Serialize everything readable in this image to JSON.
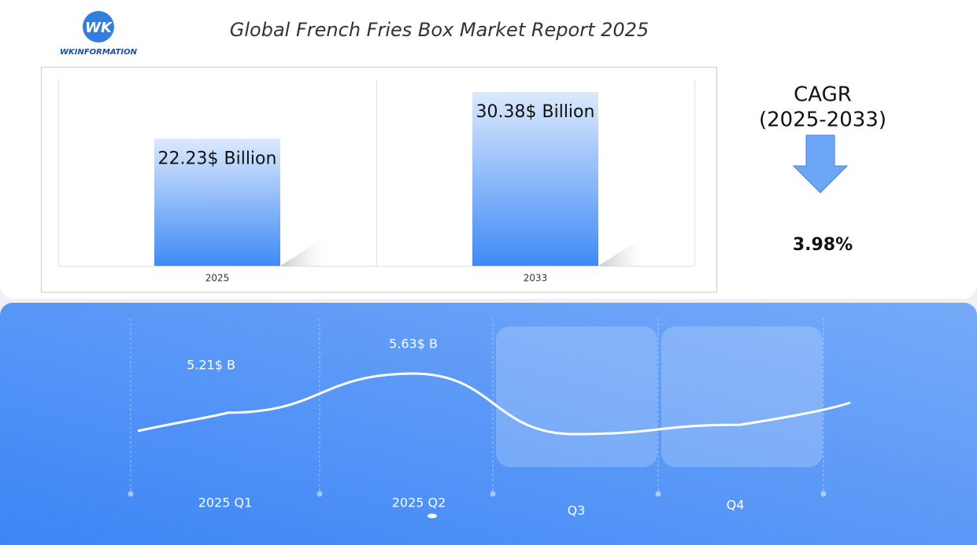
{
  "header": {
    "logo_text": "WK",
    "logo_name": "WKINFORMATION",
    "title": "Global French Fries Box Market Report 2025"
  },
  "cagr": {
    "label": "CAGR",
    "period": "(2025-2033)",
    "value": "3.98%"
  },
  "chart_data": [
    {
      "type": "bar",
      "categories": [
        "2025",
        "2033"
      ],
      "values": [
        22.23,
        30.38
      ],
      "value_labels": [
        "22.23$ Billion",
        "30.38$ Billion"
      ],
      "color": "#3f8af7"
    },
    {
      "type": "line",
      "categories": [
        "2025 Q1",
        "2025 Q2",
        "Q3",
        "Q4"
      ],
      "values": [
        5.21,
        5.63,
        4.98,
        5.08
      ],
      "value_labels": [
        "5.21$ B",
        "5.63$ B",
        null,
        null
      ],
      "color": "#ffffff"
    }
  ]
}
